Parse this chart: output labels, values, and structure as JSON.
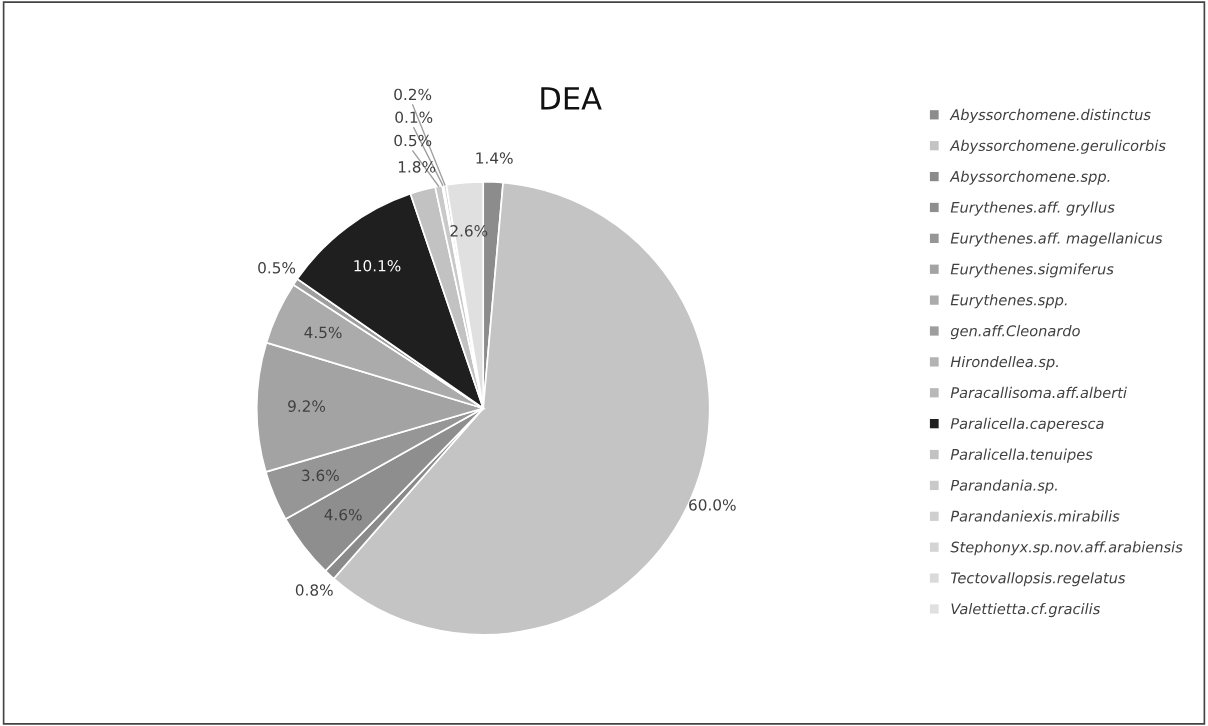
{
  "chart_data": {
    "type": "pie",
    "title": "DEA",
    "categories": [
      "Abyssorchomene.distinctus",
      "Abyssorchomene.gerulicorbis",
      "Abyssorchomene.spp.",
      "Eurythenes.aff. gryllus",
      "Eurythenes.aff. magellanicus",
      "Eurythenes.sigmiferus",
      "Eurythenes.spp.",
      "gen.aff.Cleonardo",
      "Hirondellea.sp.",
      "Paracallisoma.aff.alberti",
      "Paralicella.caperesca",
      "Paralicella.tenuipes",
      "Parandania.sp.",
      "Parandaniexis.mirabilis",
      "Stephonyx.sp.nov.aff.arabiensis",
      "Tectovallopsis.regelatus",
      "Valettietta.cf.gracilis"
    ],
    "values": [
      1.4,
      60.0,
      0.8,
      4.6,
      3.6,
      9.2,
      4.5,
      0.5,
      0,
      0,
      10.1,
      1.8,
      0.5,
      0.1,
      0.2,
      0,
      2.6
    ],
    "value_labels": [
      "1.4%",
      "60.0%",
      "0.8%",
      "4.6%",
      "3.6%",
      "9.2%",
      "4.5%",
      "0.5%",
      null,
      null,
      "10.1%",
      "1.8%",
      "0.5%",
      "0.1%",
      "0.2%",
      null,
      "2.6%"
    ],
    "colors": [
      "#8c8c8c",
      "#c4c4c4",
      "#8a8a8a",
      "#8e8e8e",
      "#969696",
      "#a3a3a3",
      "#ababab",
      "#9e9e9e",
      "#b3b3b3",
      "#b8b8b8",
      "#1f1f1f",
      "#c2c2c2",
      "#c9c9c9",
      "#cfcfcf",
      "#d4d4d4",
      "#dadada",
      "#e0e0e0"
    ],
    "legend": "right"
  }
}
